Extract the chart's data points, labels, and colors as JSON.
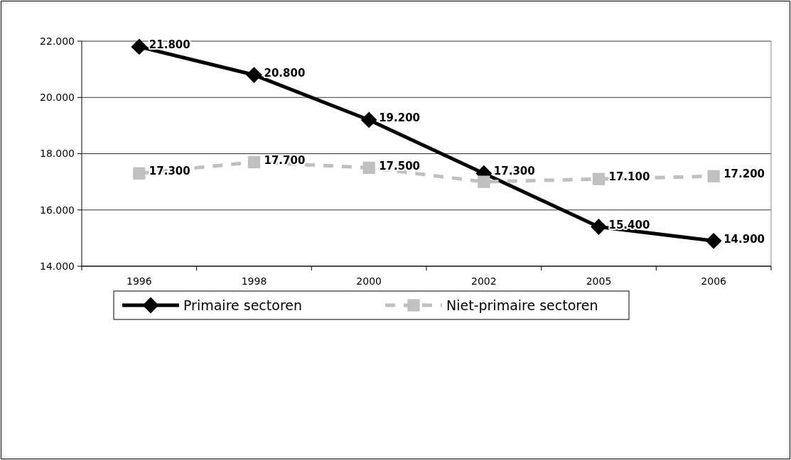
{
  "chart_data": {
    "type": "line",
    "categories": [
      "1996",
      "1998",
      "2000",
      "2002",
      "2005",
      "2006"
    ],
    "series": [
      {
        "name": "Primaire sectoren",
        "color": "#000000",
        "marker": "diamond",
        "line_style": "solid",
        "values": [
          21800,
          20800,
          19200,
          17300,
          15400,
          14900
        ],
        "value_labels": [
          "21.800",
          "20.800",
          "19.200",
          "17.300",
          "15.400",
          "14.900"
        ]
      },
      {
        "name": "Niet-primaire sectoren",
        "color": "#c0c0c0",
        "marker": "square",
        "line_style": "dashed",
        "values": [
          17300,
          17700,
          17500,
          17000,
          17100,
          17200
        ],
        "value_labels": [
          "17.300",
          "17.700",
          "17.500",
          null,
          "17.100",
          "17.200"
        ]
      }
    ],
    "ylim": [
      14000,
      22000
    ],
    "yticks": [
      {
        "value": 14000,
        "label": "14.000"
      },
      {
        "value": 16000,
        "label": "16.000"
      },
      {
        "value": 18000,
        "label": "18.000"
      },
      {
        "value": 20000,
        "label": "20.000"
      },
      {
        "value": 22000,
        "label": "22.000"
      }
    ],
    "grid": "y",
    "legend": "bottom"
  }
}
